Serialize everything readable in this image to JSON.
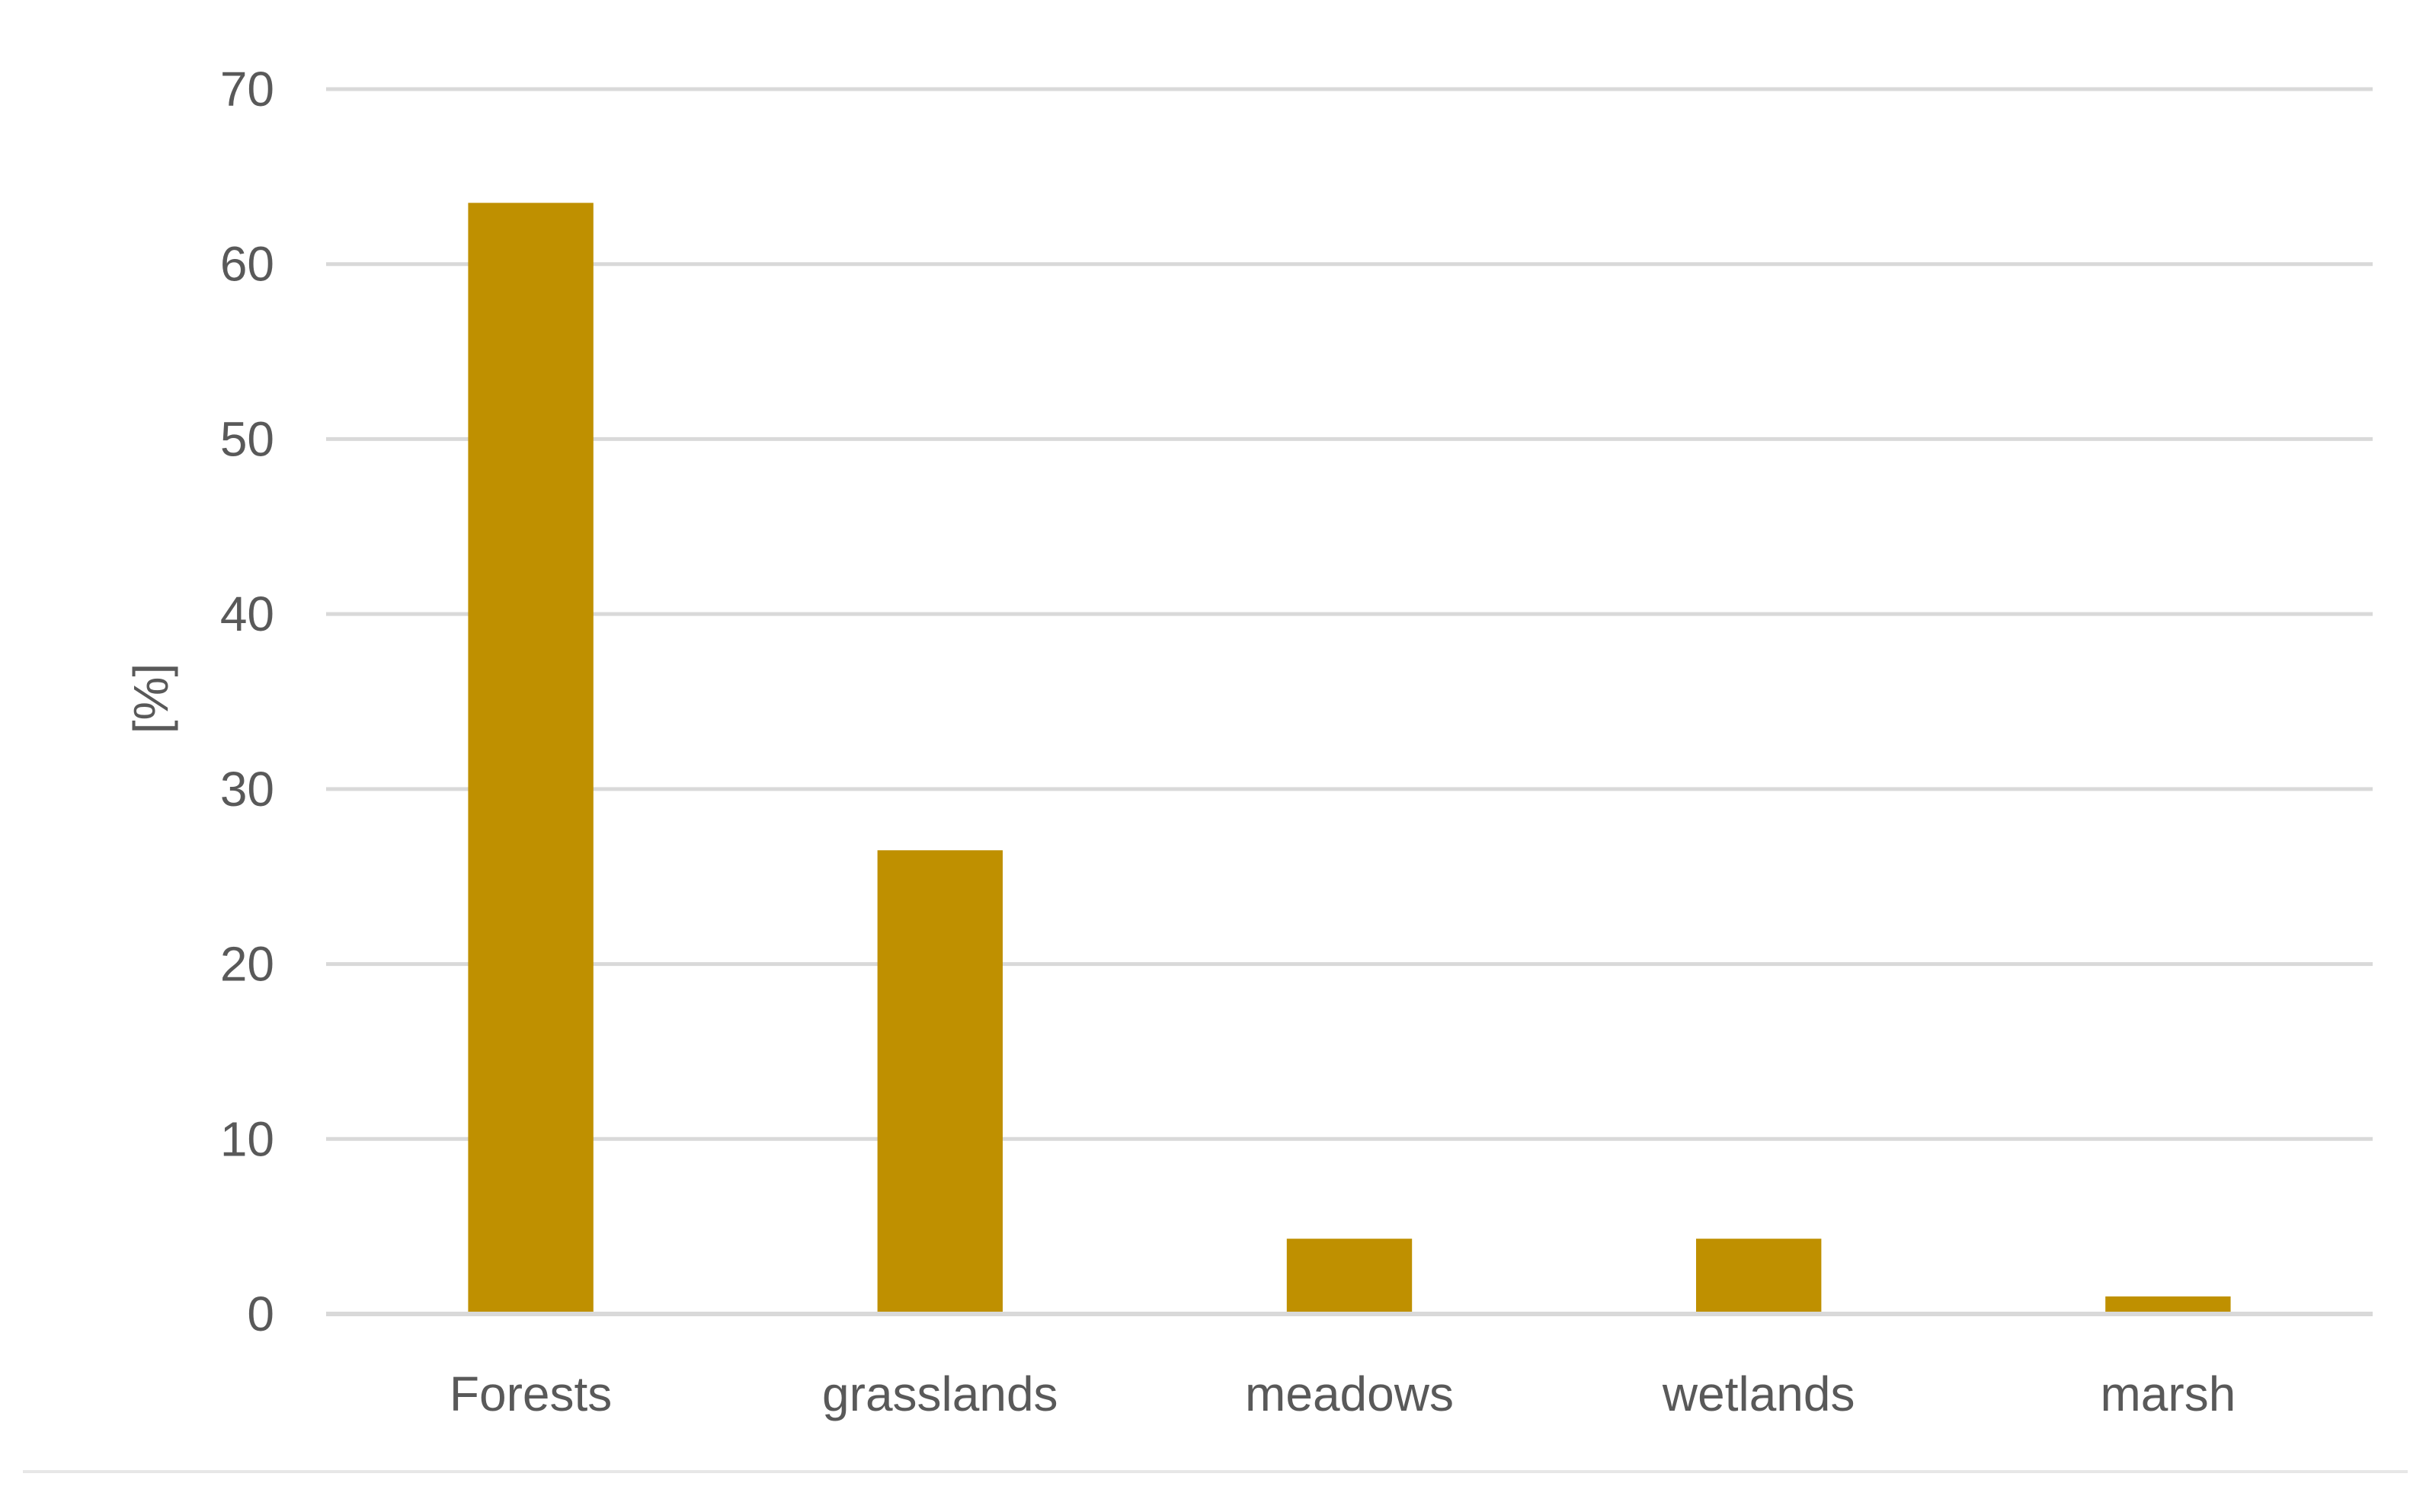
{
  "chart_data": {
    "type": "bar",
    "categories": [
      "Forests",
      "grasslands",
      "meadows",
      "wetlands",
      "marsh"
    ],
    "values": [
      63.5,
      26.5,
      4.3,
      4.3,
      1.0
    ],
    "title": "",
    "xlabel": "",
    "ylabel": "[%]",
    "ylim": [
      0,
      70
    ],
    "yticks": [
      "0",
      "10",
      "20",
      "30",
      "40",
      "50",
      "60",
      "70"
    ],
    "grid": true,
    "legend": "none",
    "colors": {
      "bar": "#BF9000",
      "grid": "#D9D9D9",
      "text": "#595959",
      "axis": "#D9D9D9"
    }
  }
}
